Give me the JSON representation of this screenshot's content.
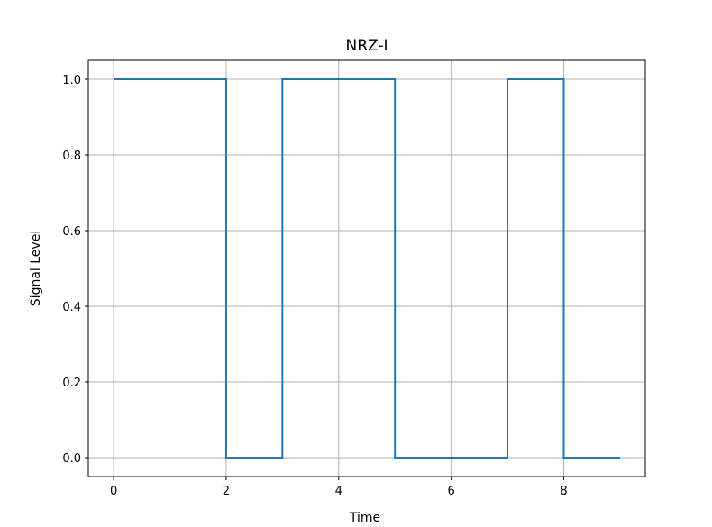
{
  "chart_data": {
    "type": "line",
    "step": "post",
    "title": "NRZ-I",
    "xlabel": "Time",
    "ylabel": "Signal Level",
    "xlim": [
      -0.45,
      9.45
    ],
    "ylim": [
      -0.05,
      1.05
    ],
    "x_ticks": [
      0,
      2,
      4,
      6,
      8
    ],
    "x_tick_labels": [
      "0",
      "2",
      "4",
      "6",
      "8"
    ],
    "y_ticks": [
      0.0,
      0.2,
      0.4,
      0.6,
      0.8,
      1.0
    ],
    "y_tick_labels": [
      "0.0",
      "0.2",
      "0.4",
      "0.6",
      "0.8",
      "1.0"
    ],
    "grid": true,
    "series": [
      {
        "x": [
          0,
          1,
          2,
          3,
          4,
          5,
          6,
          7,
          8,
          9
        ],
        "y": [
          1,
          1,
          0,
          1,
          1,
          0,
          0,
          1,
          0,
          0
        ]
      }
    ],
    "colors": {
      "line": "#1f77b4",
      "grid": "#b0b0b0",
      "axes": "#000000"
    }
  }
}
